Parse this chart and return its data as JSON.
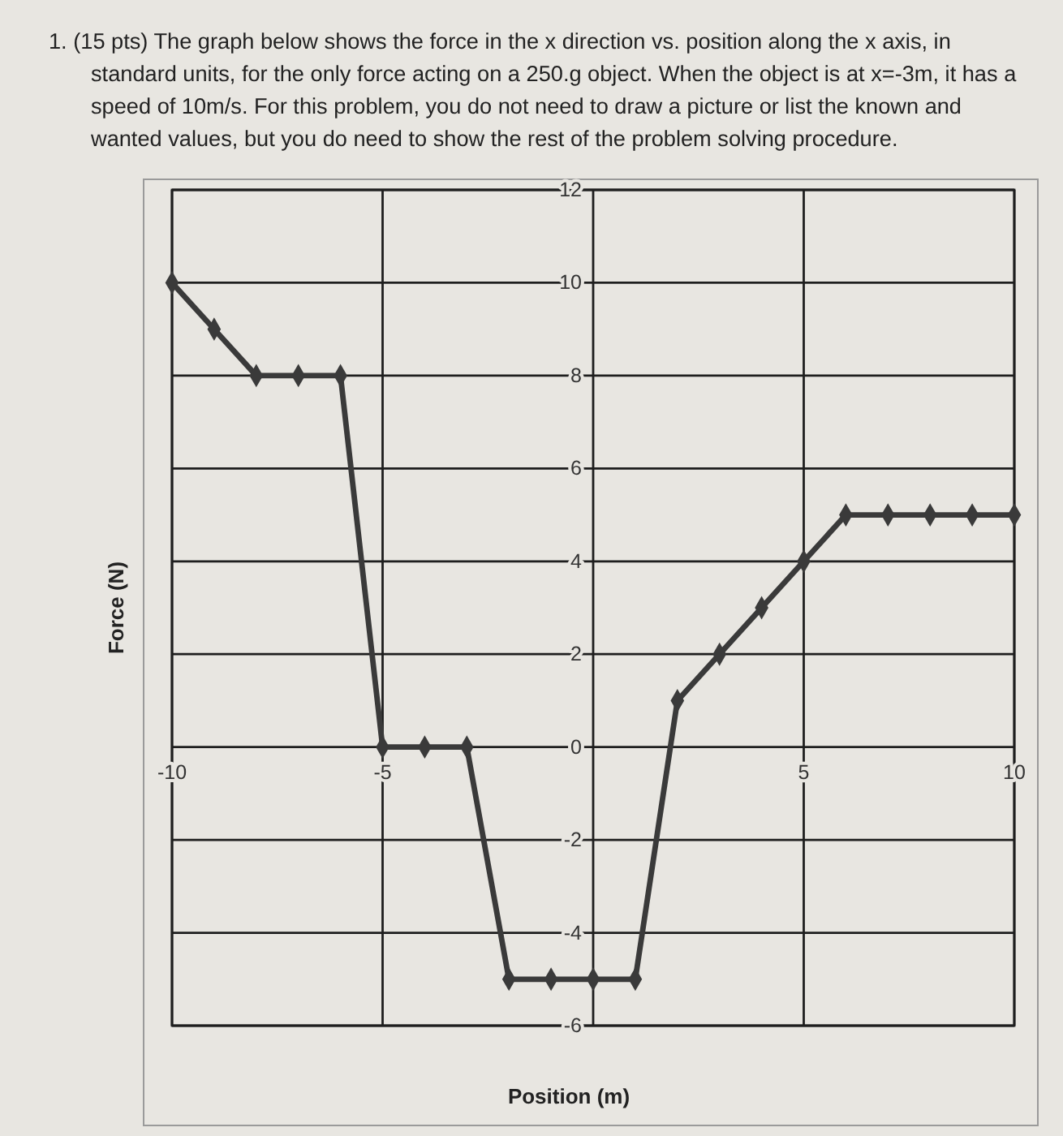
{
  "chart_data": {
    "type": "line",
    "title": "1. (15 pts) The graph below shows the force in the x direction vs. position along the x axis, in standard units, for the only force acting on a 250.g object. When the object is at x=-3m, it has a speed of 10m/s. For this problem, you do not need to draw a picture or list the known and wanted values, but you do need to show the rest of the problem solving procedure.",
    "xlabel": "Position (m)",
    "ylabel": "Force (N)",
    "x": [
      -10,
      -9,
      -8,
      -7,
      -6,
      -5,
      -4,
      -3,
      -2,
      -1,
      0,
      1,
      2,
      3,
      4,
      5,
      6,
      7,
      8,
      9,
      10
    ],
    "series": [
      {
        "color": "#3a3a3a",
        "values": [
          10,
          9,
          8,
          8,
          8,
          0,
          0,
          0,
          -5,
          -5,
          -5,
          -5,
          1,
          2,
          3,
          4,
          5,
          5,
          5,
          5,
          5
        ]
      }
    ],
    "xlim": [
      -10,
      10
    ],
    "ylim": [
      -6,
      12
    ],
    "xticks": [
      -10,
      -5,
      {
        "value": 0,
        "label": null
      },
      5,
      10
    ],
    "yticks": [
      -6,
      -4,
      -2,
      0,
      2,
      4,
      6,
      8,
      10,
      12
    ],
    "grid": true,
    "marker": "diamond",
    "line_style": "solid"
  }
}
